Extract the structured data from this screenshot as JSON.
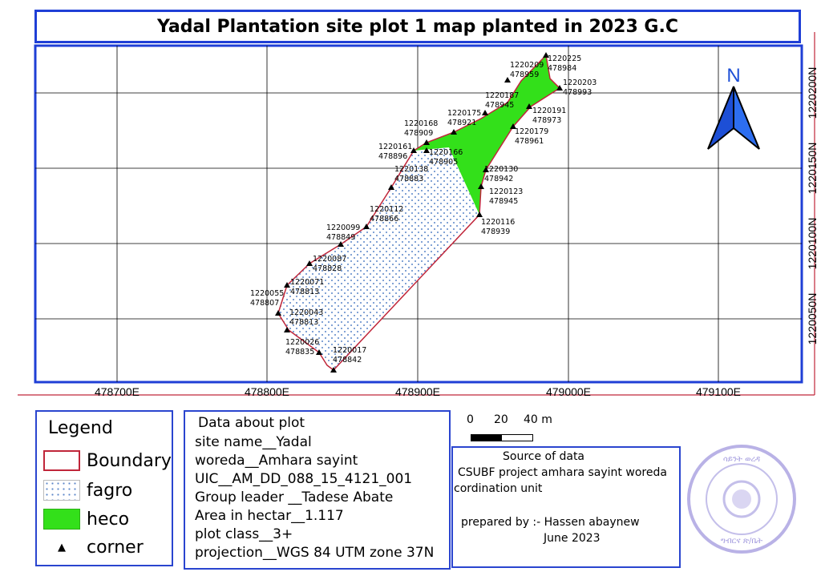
{
  "title": "Yadal Plantation site plot 1 map planted in 2023 G.C",
  "map": {
    "north_label": "N",
    "grid_x_labels": [
      "478700E",
      "478800E",
      "478900E",
      "479000E",
      "479100E"
    ],
    "grid_y_labels": [
      "1220200N",
      "1220150N",
      "1220100N",
      "1220050N"
    ],
    "corners": [
      {
        "easting": "1220225",
        "northing": "478984"
      },
      {
        "easting": "1220209",
        "northing": "478959"
      },
      {
        "easting": "1220203",
        "northing": "478993"
      },
      {
        "easting": "1220187",
        "northing": "478945"
      },
      {
        "easting": "1220191",
        "northing": "478973"
      },
      {
        "easting": "1220175",
        "northing": "478921"
      },
      {
        "easting": "1220179",
        "northing": "478961"
      },
      {
        "easting": "1220168",
        "northing": "478909"
      },
      {
        "easting": "1220161",
        "northing": "478896"
      },
      {
        "easting": "1220166",
        "northing": "478905"
      },
      {
        "easting": "1220138",
        "northing": "478883"
      },
      {
        "easting": "1220130",
        "northing": "478942"
      },
      {
        "easting": "1220123",
        "northing": "478945"
      },
      {
        "easting": "1220112",
        "northing": "478866"
      },
      {
        "easting": "1220116",
        "northing": "478939"
      },
      {
        "easting": "1220099",
        "northing": "478849"
      },
      {
        "easting": "1220087",
        "northing": "478828"
      },
      {
        "easting": "1220071",
        "northing": "478813"
      },
      {
        "easting": "1220055",
        "northing": "478807"
      },
      {
        "easting": "1220043",
        "northing": "478813"
      },
      {
        "easting": "1220026",
        "northing": "478835"
      },
      {
        "easting": "1220017",
        "northing": "478842"
      }
    ],
    "colors": {
      "frame": "#1f3fd6",
      "boundary": "#c0263a",
      "heco": "#33e01a",
      "fagro_dots": "#5b86c8",
      "north_arrow": "#1d4fd6"
    }
  },
  "legend": {
    "title": "Legend",
    "items": [
      {
        "label": "Boundary",
        "icon": "boundary-swatch"
      },
      {
        "label": "fagro",
        "icon": "dotted-swatch"
      },
      {
        "label": "heco",
        "icon": "green-swatch"
      },
      {
        "label": "corner",
        "icon": "triangle-icon"
      }
    ]
  },
  "plot_info": {
    "heading": "Data about plot",
    "lines": [
      "site name__Yadal",
      "woreda__Amhara sayint",
      "UIC__AM_DD_088_15_4121_001",
      "Group leader __Tadese Abate",
      "Area in hectar__1.117",
      "plot class__3+",
      "projection__WGS 84 UTM zone 37N"
    ]
  },
  "scale_bar": {
    "labels": [
      "0",
      "20",
      "40 m"
    ]
  },
  "source": {
    "heading": "Source of data",
    "line1": "CSUBF project amhara sayint woreda",
    "line2": "cordination unit",
    "prepared_by": "prepared by :- Hassen abaynew",
    "date": "June 2023"
  },
  "stamp": {
    "text": "ሳይንት ወረዳ ግብርና ጽ/ቤት"
  }
}
